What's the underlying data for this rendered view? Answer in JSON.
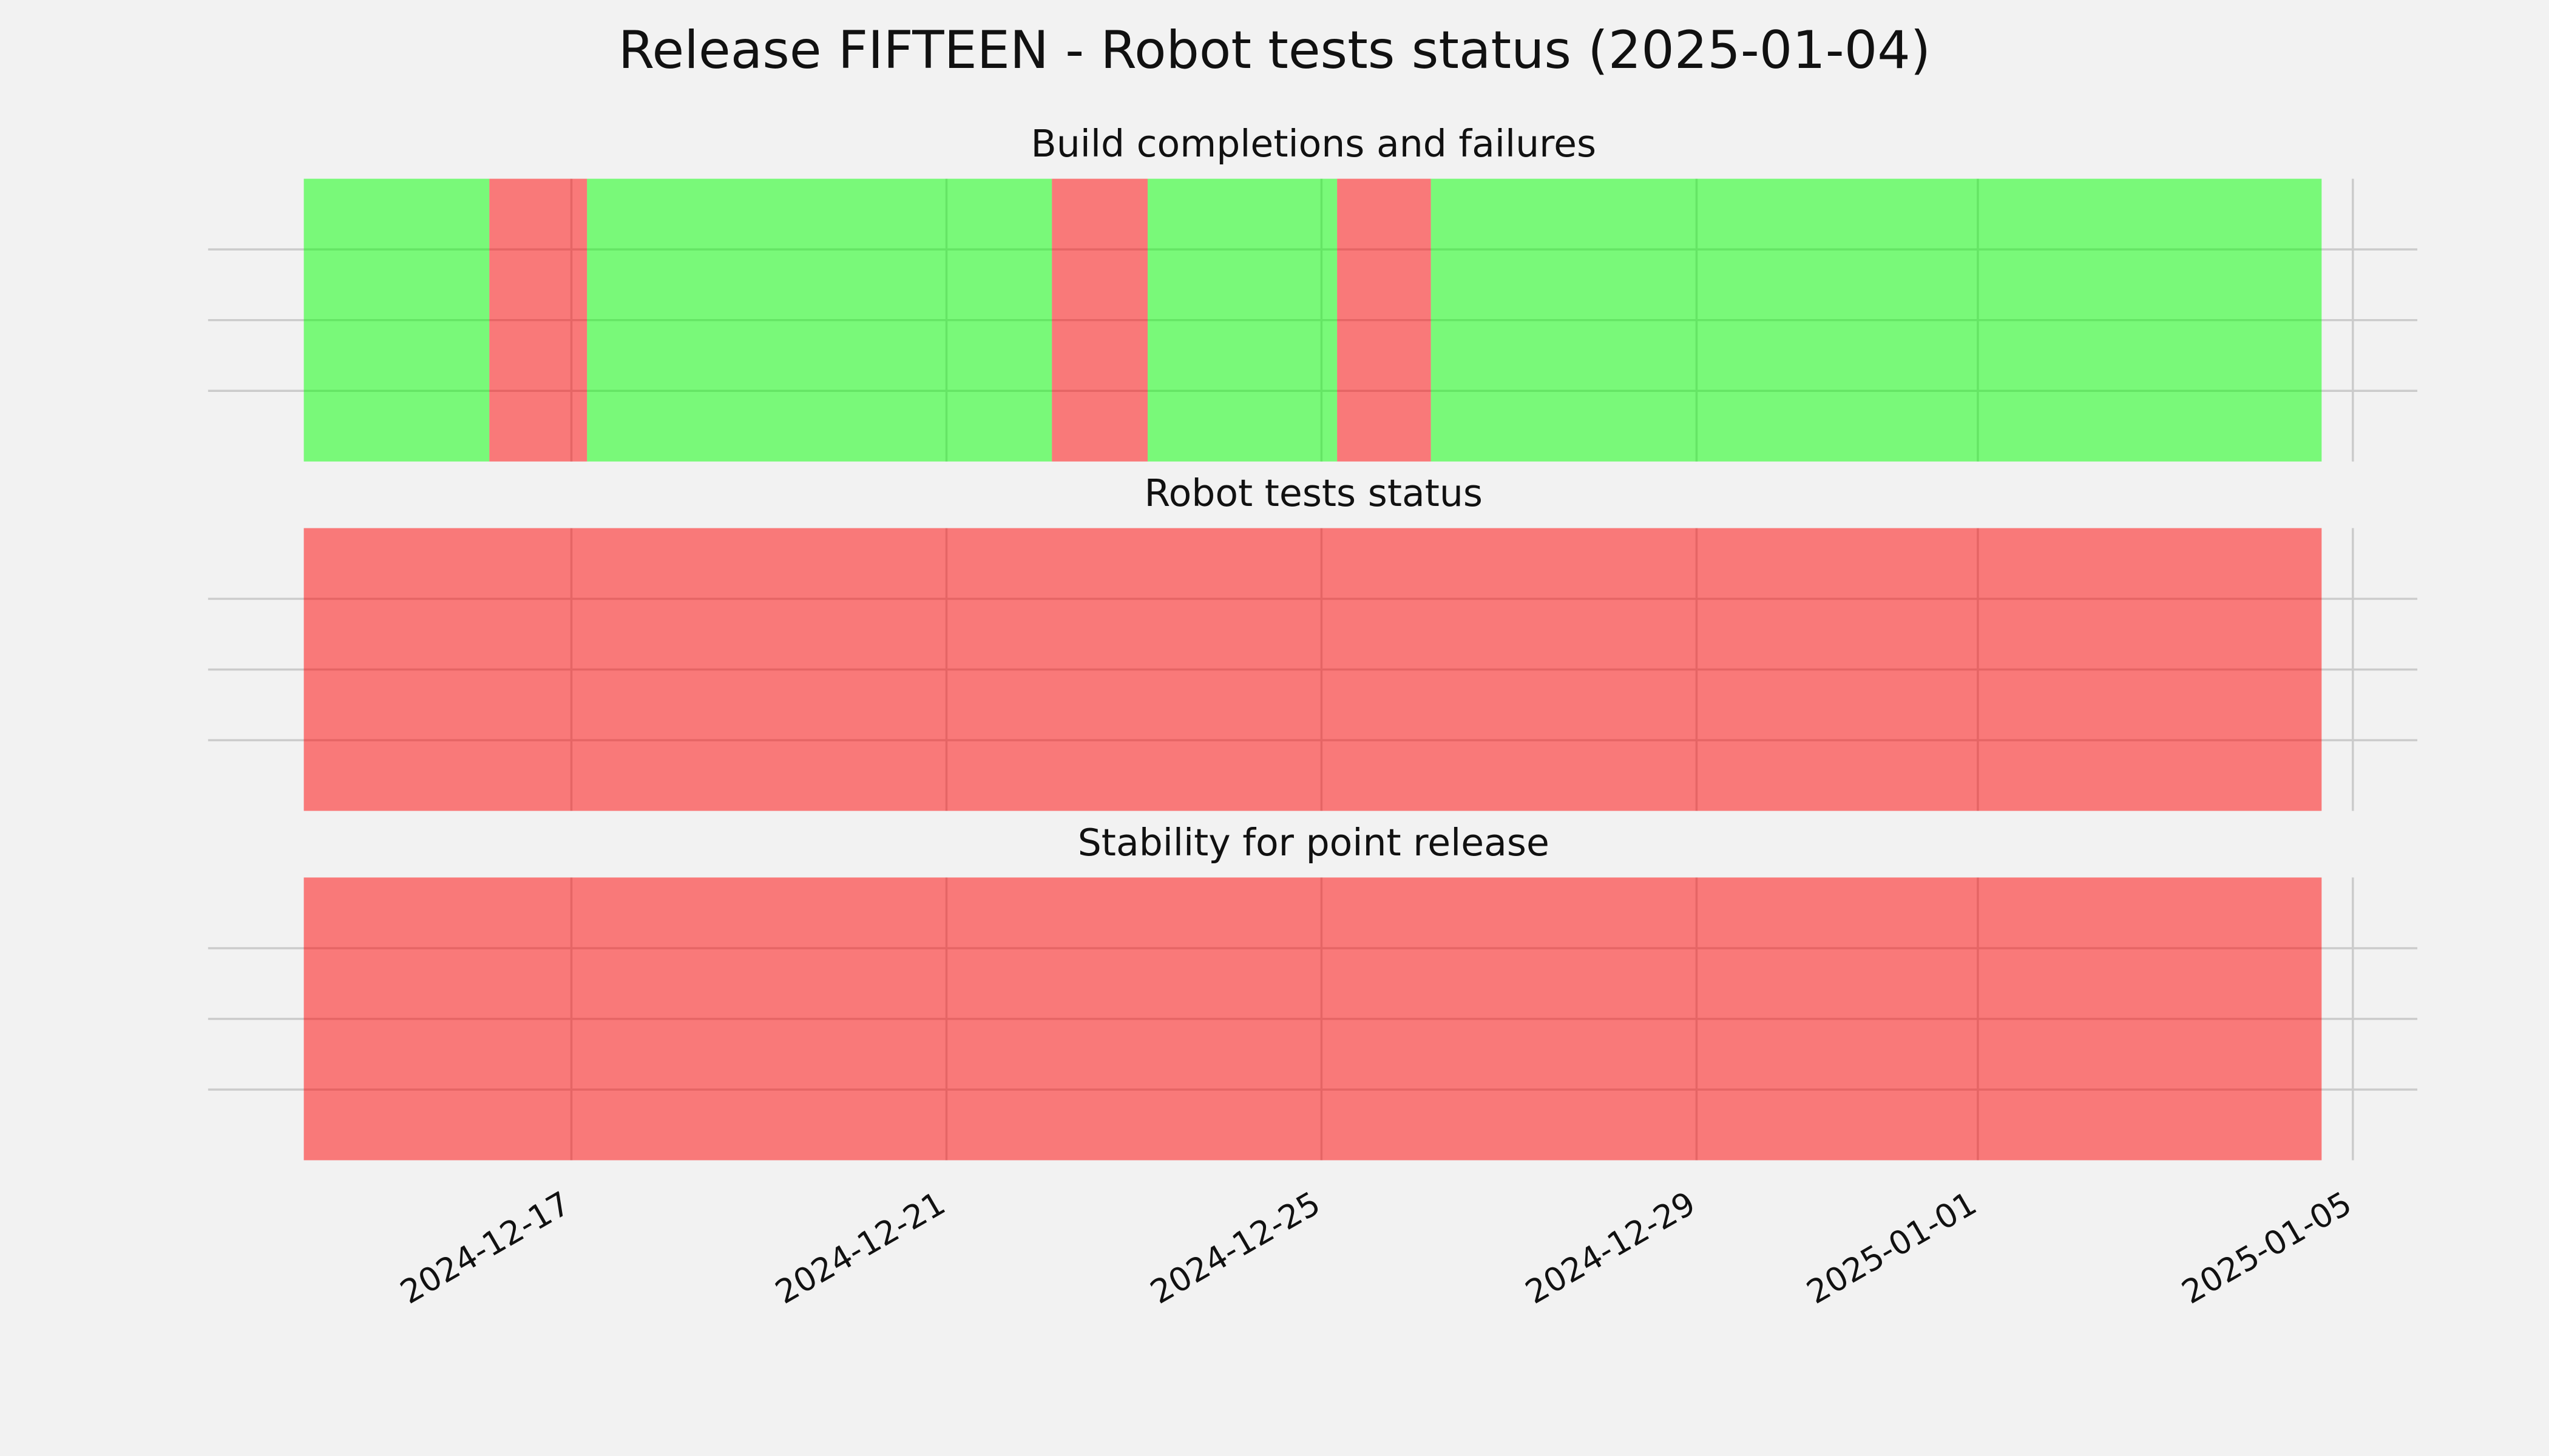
{
  "title": "Release FIFTEEN - Robot tests status (2025-01-04)",
  "chart_data": [
    {
      "type": "timeline",
      "title": "Build completions and failures",
      "segments": [
        {
          "start": "2024-12-14 03:30",
          "end": "2024-12-16 03:00",
          "color": "#00ff00"
        },
        {
          "start": "2024-12-16 03:00",
          "end": "2024-12-17 04:00",
          "color": "#ff0000"
        },
        {
          "start": "2024-12-17 04:00",
          "end": "2024-12-22 03:00",
          "color": "#00ff00"
        },
        {
          "start": "2024-12-22 03:00",
          "end": "2024-12-23 03:30",
          "color": "#ff0000"
        },
        {
          "start": "2024-12-23 03:30",
          "end": "2024-12-25 04:00",
          "color": "#00ff00"
        },
        {
          "start": "2024-12-25 04:00",
          "end": "2024-12-26 04:00",
          "color": "#ff0000"
        },
        {
          "start": "2024-12-26 04:00",
          "end": "2025-01-04 16:00",
          "color": "#00ff00"
        }
      ],
      "xlim": [
        "2024-12-13 03:00",
        "2025-01-05 16:30"
      ],
      "xticks": [
        "2024-12-17",
        "2024-12-21",
        "2024-12-25",
        "2024-12-29",
        "2025-01-01",
        "2025-01-05"
      ],
      "ylim": [
        0,
        1
      ],
      "yticks": [
        0.25,
        0.5,
        0.75
      ],
      "grid": true
    },
    {
      "type": "timeline",
      "title": "Robot tests status",
      "segments": [
        {
          "start": "2024-12-14 03:30",
          "end": "2025-01-04 16:00",
          "color": "#ff0000"
        }
      ],
      "xlim": [
        "2024-12-13 03:00",
        "2025-01-05 16:30"
      ],
      "xticks": [
        "2024-12-17",
        "2024-12-21",
        "2024-12-25",
        "2024-12-29",
        "2025-01-01",
        "2025-01-05"
      ],
      "ylim": [
        0,
        1
      ],
      "yticks": [
        0.25,
        0.5,
        0.75
      ],
      "grid": true
    },
    {
      "type": "timeline",
      "title": "Stability for point release",
      "segments": [
        {
          "start": "2024-12-14 03:30",
          "end": "2025-01-04 16:00",
          "color": "#ff0000"
        }
      ],
      "xlim": [
        "2024-12-13 03:00",
        "2025-01-05 16:30"
      ],
      "xticks": [
        "2024-12-17",
        "2024-12-21",
        "2024-12-25",
        "2024-12-29",
        "2025-01-01",
        "2025-01-05"
      ],
      "ylim": [
        0,
        1
      ],
      "yticks": [
        0.25,
        0.5,
        0.75
      ],
      "grid": true,
      "show_xtick_labels": true
    }
  ]
}
